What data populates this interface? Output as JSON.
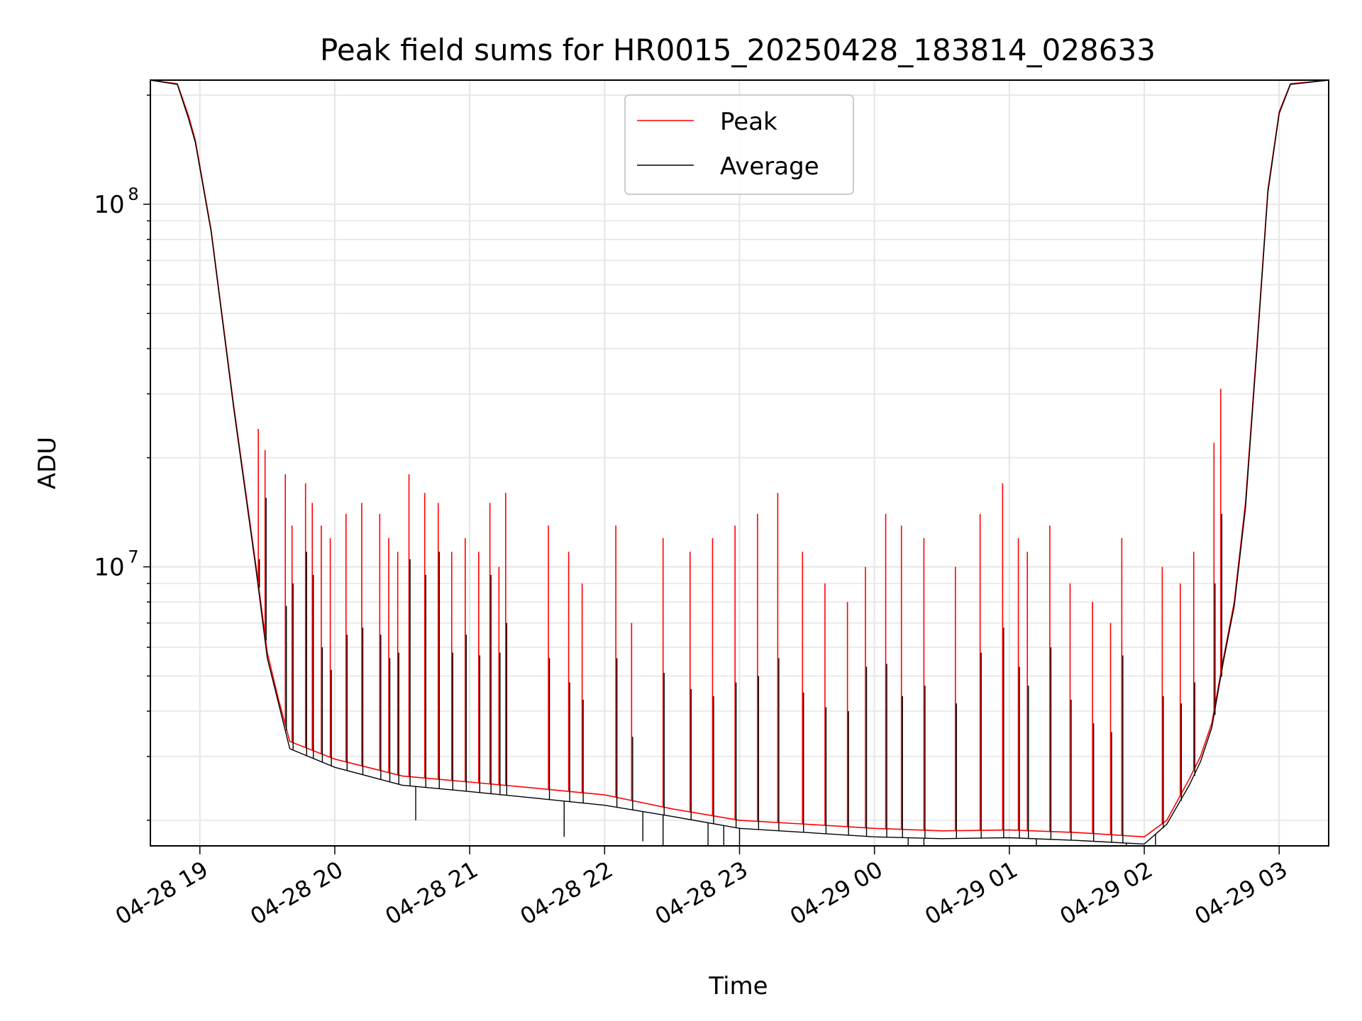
{
  "chart_data": {
    "type": "line",
    "title": "Peak field sums for HR0015_20250428_183814_028633",
    "xlabel": "Time",
    "ylabel": "ADU",
    "yscale": "log",
    "xlim": [
      "2025-04-28 18:38",
      "2025-04-29 03:22"
    ],
    "ylim": [
      1700000,
      220000000
    ],
    "grid": true,
    "legend_position": "top-center",
    "x_ticks": [
      "04-28 19",
      "04-28 20",
      "04-28 21",
      "04-28 22",
      "04-28 23",
      "04-29 00",
      "04-29 01",
      "04-29 02",
      "04-29 03"
    ],
    "y_major_ticks": [
      {
        "value": 10000000,
        "base": "10",
        "exp": "7"
      },
      {
        "value": 100000000,
        "base": "10",
        "exp": "8"
      }
    ],
    "baseline": {
      "x": [
        "2025-04-28 18:38",
        "2025-04-28 18:50",
        "2025-04-28 18:55",
        "2025-04-28 18:58",
        "2025-04-28 19:05",
        "2025-04-28 19:15",
        "2025-04-28 19:25",
        "2025-04-28 19:30",
        "2025-04-28 19:35",
        "2025-04-28 19:40",
        "2025-04-28 20:00",
        "2025-04-28 20:30",
        "2025-04-28 21:00",
        "2025-04-28 21:30",
        "2025-04-28 22:00",
        "2025-04-28 22:30",
        "2025-04-28 23:00",
        "2025-04-28 23:30",
        "2025-04-29 00:00",
        "2025-04-29 00:30",
        "2025-04-29 01:00",
        "2025-04-29 01:30",
        "2025-04-29 02:00",
        "2025-04-29 02:10",
        "2025-04-29 02:20",
        "2025-04-29 02:25",
        "2025-04-29 02:30",
        "2025-04-29 02:35",
        "2025-04-29 02:40",
        "2025-04-29 02:45",
        "2025-04-29 02:50",
        "2025-04-29 02:55",
        "2025-04-29 03:00",
        "2025-04-29 03:05",
        "2025-04-29 03:22"
      ],
      "peak": [
        220000000,
        215000000,
        175000000,
        150000000,
        85000000,
        28000000,
        10000000,
        5800000,
        4300000,
        3300000,
        2950000,
        2650000,
        2550000,
        2450000,
        2350000,
        2150000,
        2000000,
        1950000,
        1900000,
        1870000,
        1880000,
        1850000,
        1800000,
        2000000,
        2600000,
        3000000,
        3700000,
        5500000,
        8000000,
        15000000,
        40000000,
        110000000,
        180000000,
        215000000,
        220000000
      ],
      "average": [
        220000000,
        214000000,
        172000000,
        148000000,
        84000000,
        27500000,
        9800000,
        5600000,
        4200000,
        3150000,
        2800000,
        2500000,
        2400000,
        2300000,
        2200000,
        2050000,
        1900000,
        1850000,
        1800000,
        1780000,
        1790000,
        1760000,
        1720000,
        1950000,
        2500000,
        2900000,
        3600000,
        5400000,
        7800000,
        14500000,
        39000000,
        108000000,
        178000000,
        214000000,
        220000000
      ]
    },
    "spikes": {
      "times": [
        "2025-04-28 19:26",
        "2025-04-28 19:29",
        "2025-04-28 19:38",
        "2025-04-28 19:41",
        "2025-04-28 19:47",
        "2025-04-28 19:50",
        "2025-04-28 19:54",
        "2025-04-28 19:58",
        "2025-04-28 20:05",
        "2025-04-28 20:12",
        "2025-04-28 20:20",
        "2025-04-28 20:24",
        "2025-04-28 20:28",
        "2025-04-28 20:33",
        "2025-04-28 20:40",
        "2025-04-28 20:46",
        "2025-04-28 20:52",
        "2025-04-28 20:58",
        "2025-04-28 21:04",
        "2025-04-28 21:09",
        "2025-04-28 21:13",
        "2025-04-28 21:16",
        "2025-04-28 21:35",
        "2025-04-28 21:44",
        "2025-04-28 21:50",
        "2025-04-28 22:05",
        "2025-04-28 22:12",
        "2025-04-28 22:26",
        "2025-04-28 22:38",
        "2025-04-28 22:48",
        "2025-04-28 22:58",
        "2025-04-28 23:08",
        "2025-04-28 23:17",
        "2025-04-28 23:28",
        "2025-04-28 23:38",
        "2025-04-28 23:48",
        "2025-04-28 23:56",
        "2025-04-29 00:05",
        "2025-04-29 00:12",
        "2025-04-29 00:22",
        "2025-04-29 00:36",
        "2025-04-29 00:47",
        "2025-04-29 00:57",
        "2025-04-29 01:04",
        "2025-04-29 01:08",
        "2025-04-29 01:18",
        "2025-04-29 01:27",
        "2025-04-29 01:37",
        "2025-04-29 01:45",
        "2025-04-29 01:50",
        "2025-04-29 02:08",
        "2025-04-29 02:16",
        "2025-04-29 02:22",
        "2025-04-29 02:31",
        "2025-04-29 02:34"
      ],
      "peak": [
        24000000,
        21000000,
        18000000,
        13000000,
        17000000,
        15000000,
        13000000,
        12000000,
        14000000,
        15000000,
        14000000,
        12000000,
        11000000,
        18000000,
        16000000,
        15000000,
        11000000,
        12000000,
        11000000,
        15000000,
        10000000,
        16000000,
        13000000,
        11000000,
        9000000,
        13000000,
        7000000,
        12000000,
        11000000,
        12000000,
        13000000,
        14000000,
        16000000,
        11000000,
        9000000,
        8000000,
        10000000,
        14000000,
        13000000,
        12000000,
        10000000,
        14000000,
        17000000,
        12000000,
        11000000,
        13000000,
        9000000,
        8000000,
        7000000,
        12000000,
        10000000,
        9000000,
        11000000,
        22000000,
        31000000
      ],
      "average": [
        10500000,
        15500000,
        7800000,
        9000000,
        11000000,
        9500000,
        6000000,
        5200000,
        6500000,
        6800000,
        6500000,
        5600000,
        5800000,
        10500000,
        9500000,
        11000000,
        5800000,
        6500000,
        5700000,
        9500000,
        5800000,
        7000000,
        5600000,
        4800000,
        4300000,
        5600000,
        3400000,
        5100000,
        4600000,
        4400000,
        4800000,
        5000000,
        5600000,
        4500000,
        4100000,
        4000000,
        5300000,
        5400000,
        4400000,
        4700000,
        4200000,
        5800000,
        6800000,
        5300000,
        4700000,
        6000000,
        4300000,
        3700000,
        3500000,
        5700000,
        4400000,
        4200000,
        4800000,
        9000000,
        14000000
      ]
    },
    "dips": {
      "times": [
        "2025-04-28 20:36",
        "2025-04-28 21:42",
        "2025-04-28 22:17",
        "2025-04-28 22:26",
        "2025-04-28 22:46",
        "2025-04-28 22:53",
        "2025-04-28 23:00",
        "2025-04-29 00:15",
        "2025-04-29 00:22",
        "2025-04-29 01:12",
        "2025-04-29 01:52",
        "2025-04-29 02:05"
      ],
      "average": [
        2000000,
        1800000,
        1750000,
        1600000,
        1650000,
        1600000,
        1650000,
        1650000,
        1650000,
        1600000,
        1620000,
        1680000
      ]
    },
    "series": [
      {
        "name": "Peak",
        "color": "#ff0000"
      },
      {
        "name": "Average",
        "color": "#000000"
      }
    ],
    "grid_color": "#e5e5e5"
  }
}
